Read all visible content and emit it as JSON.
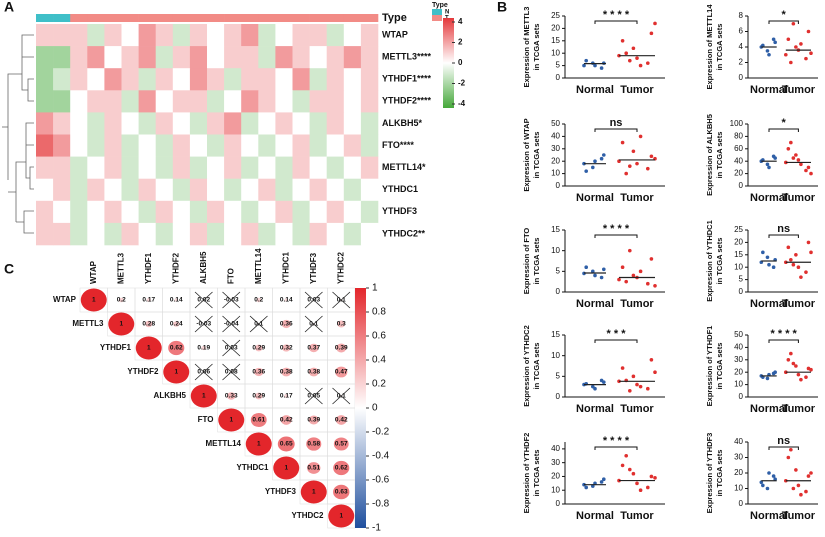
{
  "chart_data": [
    {
      "type": "heatmap",
      "panel": "A",
      "rows": [
        "WTAP",
        "METTL3****",
        "YTHDF1****",
        "YTHDF2****",
        "ALKBH5*",
        "FTO****",
        "METTL14*",
        "YTHDC1",
        "YTHDF3",
        "YTHDC2**"
      ],
      "column_types": [
        "N",
        "N",
        "T",
        "T",
        "T",
        "T",
        "T",
        "T",
        "T",
        "T",
        "T",
        "T",
        "T",
        "T",
        "T",
        "T",
        "T",
        "T",
        "T",
        "T"
      ],
      "values": [
        [
          1,
          1,
          1,
          -1,
          1,
          0,
          2,
          1,
          -1,
          1,
          0,
          1,
          2,
          -1,
          0,
          1,
          1,
          -1,
          0,
          1
        ],
        [
          -2,
          -2,
          1,
          2,
          0,
          1,
          2,
          -1,
          1,
          2,
          0,
          1,
          1,
          -1,
          2,
          1,
          0,
          1,
          2,
          1
        ],
        [
          -2,
          -1,
          1,
          0,
          2,
          1,
          -1,
          1,
          0,
          2,
          1,
          -1,
          1,
          1,
          0,
          2,
          -1,
          1,
          0,
          1
        ],
        [
          -2,
          -2,
          0,
          1,
          1,
          -1,
          2,
          0,
          1,
          1,
          -1,
          0,
          2,
          1,
          0,
          -1,
          1,
          1,
          0,
          1
        ],
        [
          2,
          1,
          0,
          -1,
          1,
          0,
          -1,
          1,
          0,
          -1,
          1,
          2,
          -1,
          0,
          1,
          0,
          -1,
          1,
          0,
          -1
        ],
        [
          3,
          2,
          0,
          -1,
          1,
          -1,
          0,
          -1,
          1,
          0,
          -1,
          1,
          0,
          -1,
          0,
          1,
          -1,
          0,
          1,
          -1
        ],
        [
          1,
          1,
          -1,
          0,
          1,
          -1,
          0,
          -1,
          1,
          -1,
          0,
          1,
          -1,
          0,
          -1,
          1,
          0,
          -1,
          0,
          1
        ],
        [
          0,
          1,
          -1,
          1,
          0,
          -1,
          1,
          0,
          -1,
          1,
          0,
          -1,
          0,
          1,
          -1,
          0,
          1,
          0,
          -1,
          0
        ],
        [
          1,
          0,
          -1,
          0,
          1,
          0,
          -1,
          1,
          0,
          -1,
          1,
          0,
          -1,
          0,
          1,
          -1,
          0,
          1,
          0,
          -1
        ],
        [
          1,
          1,
          -1,
          0,
          -1,
          1,
          0,
          -1,
          0,
          1,
          -1,
          0,
          1,
          -1,
          0,
          -1,
          1,
          0,
          -1,
          0
        ]
      ],
      "annotation_title": "Type",
      "legend": {
        "title": "Type",
        "entries": [
          {
            "name": "N",
            "color": "#3fbfc8"
          },
          {
            "name": "T",
            "color": "#f28b86"
          }
        ]
      },
      "clim": [
        -4,
        4
      ],
      "colorbar_ticks": [
        4,
        2,
        0,
        -2,
        -4
      ],
      "colors": [
        "#45a83a",
        "#ffffff",
        "#e4373a"
      ]
    },
    {
      "type": "strip",
      "panel": "B",
      "ylabel": [
        "Expression of METTL3",
        "in TCGA sets"
      ],
      "categories": [
        "Normal",
        "Tumor"
      ],
      "colors": [
        "#2f5fa7",
        "#e0302f"
      ],
      "significance": "* * * *",
      "ylim": [
        0,
        25
      ],
      "yticks": [
        0,
        5,
        10,
        15,
        20,
        25
      ],
      "points": [
        [
          5,
          6,
          4,
          7,
          5,
          6
        ],
        [
          9,
          12,
          6,
          15,
          8,
          18,
          10,
          5,
          22,
          7
        ]
      ],
      "means": [
        5.8,
        9
      ]
    },
    {
      "type": "strip",
      "ylabel": [
        "Expression of METTL14",
        "in TCGA sets"
      ],
      "categories": [
        "Normal",
        "Tumor"
      ],
      "colors": [
        "#2f5fa7",
        "#e0302f"
      ],
      "significance": "*",
      "ylim": [
        0,
        8
      ],
      "yticks": [
        0,
        2,
        4,
        6,
        8
      ],
      "points": [
        [
          4,
          3.5,
          5,
          4.2,
          3,
          4.6
        ],
        [
          3,
          4,
          2.5,
          5,
          3.6,
          6,
          2,
          4.4,
          3.2,
          7
        ]
      ],
      "means": [
        4,
        3.6
      ]
    },
    {
      "type": "strip",
      "ylabel": [
        "Expression of WTAP",
        "in TCGA sets"
      ],
      "categories": [
        "Normal",
        "Tumor"
      ],
      "colors": [
        "#2f5fa7",
        "#e0302f"
      ],
      "significance": "ns",
      "ylim": [
        0,
        50
      ],
      "yticks": [
        0,
        10,
        20,
        30,
        40,
        50
      ],
      "points": [
        [
          18,
          15,
          22,
          12,
          20,
          25
        ],
        [
          20,
          28,
          14,
          35,
          18,
          24,
          10,
          40,
          22,
          16
        ]
      ],
      "means": [
        18,
        21
      ]
    },
    {
      "type": "strip",
      "ylabel": [
        "Expression of ALKBH5",
        "in TCGA sets"
      ],
      "categories": [
        "Normal",
        "Tumor"
      ],
      "colors": [
        "#2f5fa7",
        "#e0302f"
      ],
      "significance": "*",
      "ylim": [
        0,
        100
      ],
      "yticks": [
        0,
        20,
        40,
        60,
        80,
        100
      ],
      "points": [
        [
          40,
          35,
          48,
          42,
          30,
          45
        ],
        [
          38,
          50,
          25,
          60,
          42,
          30,
          70,
          35,
          20,
          45
        ]
      ],
      "means": [
        40,
        38
      ]
    },
    {
      "type": "strip",
      "ylabel": [
        "Expression of FTO",
        "in TCGA sets"
      ],
      "categories": [
        "Normal",
        "Tumor"
      ],
      "colors": [
        "#2f5fa7",
        "#e0302f"
      ],
      "significance": "* * * *",
      "ylim": [
        0,
        15
      ],
      "yticks": [
        0,
        5,
        10,
        15
      ],
      "points": [
        [
          4.5,
          5,
          3.5,
          6,
          4,
          5.5
        ],
        [
          3,
          4,
          2,
          6,
          3.5,
          8,
          2.5,
          5,
          1.5,
          10
        ]
      ],
      "means": [
        4.6,
        3.5
      ]
    },
    {
      "type": "strip",
      "ylabel": [
        "Expression of YTHDC1",
        "in TCGA sets"
      ],
      "categories": [
        "Normal",
        "Tumor"
      ],
      "colors": [
        "#2f5fa7",
        "#e0302f"
      ],
      "significance": "ns",
      "ylim": [
        0,
        25
      ],
      "yticks": [
        0,
        5,
        10,
        15,
        20,
        25
      ],
      "points": [
        [
          12,
          14,
          10,
          16,
          11,
          13
        ],
        [
          12,
          15,
          8,
          18,
          10,
          20,
          13,
          6,
          16,
          11
        ]
      ],
      "means": [
        12.5,
        12
      ]
    },
    {
      "type": "strip",
      "ylabel": [
        "Expression of YTHDC2",
        "in TCGA sets"
      ],
      "categories": [
        "Normal",
        "Tumor"
      ],
      "colors": [
        "#2f5fa7",
        "#e0302f"
      ],
      "significance": "* * *",
      "ylim": [
        0,
        15
      ],
      "yticks": [
        0,
        5,
        10,
        15
      ],
      "points": [
        [
          3,
          2.5,
          4,
          3.2,
          2,
          3.6
        ],
        [
          3.8,
          5,
          2,
          7,
          3,
          9,
          4,
          2.5,
          6,
          1.5
        ]
      ],
      "means": [
        3,
        3.8
      ]
    },
    {
      "type": "strip",
      "ylabel": [
        "Expression of YTHDF1",
        "in TCGA sets"
      ],
      "categories": [
        "Normal",
        "Tumor"
      ],
      "colors": [
        "#2f5fa7",
        "#e0302f"
      ],
      "significance": "* * * *",
      "ylim": [
        0,
        50
      ],
      "yticks": [
        0,
        10,
        20,
        30,
        40,
        50
      ],
      "points": [
        [
          17,
          15,
          19,
          16,
          18,
          20
        ],
        [
          20,
          25,
          16,
          30,
          18,
          23,
          35,
          14,
          22,
          27
        ]
      ],
      "means": [
        17,
        20
      ]
    },
    {
      "type": "strip",
      "ylabel": [
        "Expression of YTHDF2",
        "in TCGA sets"
      ],
      "categories": [
        "Normal",
        "Tumor"
      ],
      "colors": [
        "#2f5fa7",
        "#e0302f"
      ],
      "significance": "* * * *",
      "ylim": [
        0,
        45
      ],
      "yticks": [
        0,
        10,
        20,
        30,
        40
      ],
      "points": [
        [
          14,
          13,
          16,
          12,
          15,
          18
        ],
        [
          17,
          22,
          12,
          28,
          15,
          20,
          35,
          10,
          19,
          25
        ]
      ],
      "means": [
        14,
        17
      ]
    },
    {
      "type": "strip",
      "ylabel": [
        "Expression of YTHDF3",
        "in TCGA sets"
      ],
      "categories": [
        "Normal",
        "Tumor"
      ],
      "colors": [
        "#2f5fa7",
        "#e0302f"
      ],
      "significance": "ns",
      "ylim": [
        0,
        40
      ],
      "yticks": [
        0,
        10,
        20,
        30,
        40
      ],
      "points": [
        [
          14,
          10,
          18,
          12,
          20,
          16
        ],
        [
          15,
          22,
          8,
          30,
          12,
          18,
          35,
          6,
          20,
          10
        ]
      ],
      "means": [
        15,
        15
      ]
    },
    {
      "type": "corrplot",
      "panel": "C",
      "labels": [
        "WTAP",
        "METTL3",
        "YTHDF1",
        "YTHDF2",
        "ALKBH5",
        "FTO",
        "METTL14",
        "YTHDC1",
        "YTHDF3",
        "YTHDC2"
      ],
      "values": [
        [
          1,
          0.2,
          0.17,
          0.14,
          0.02,
          -0.03,
          0.2,
          0.14,
          0.03,
          0.1
        ],
        [
          1,
          0.28,
          0.24,
          -0.03,
          -0.04,
          0.1,
          0.36,
          0.1,
          0.3
        ],
        [
          1,
          0.62,
          0.19,
          0.03,
          0.29,
          0.32,
          0.37,
          0.39
        ],
        [
          1,
          0.06,
          0.08,
          0.36,
          0.38,
          0.38,
          0.47
        ],
        [
          1,
          0.33,
          0.29,
          0.17,
          0.05,
          0.1
        ],
        [
          1,
          0.61,
          0.42,
          0.39,
          0.42
        ],
        [
          1,
          0.65,
          0.58,
          0.57
        ],
        [
          1,
          0.51,
          0.62
        ],
        [
          1,
          0.63
        ],
        [
          1
        ]
      ],
      "insignificant": [
        [
          false,
          false,
          false,
          false,
          true,
          true,
          false,
          false,
          true,
          true
        ],
        [
          false,
          false,
          false,
          true,
          true,
          true,
          false,
          true,
          false
        ],
        [
          false,
          false,
          false,
          true,
          false,
          false,
          false,
          false
        ],
        [
          false,
          true,
          true,
          false,
          false,
          false,
          false
        ],
        [
          false,
          false,
          false,
          false,
          true,
          true
        ],
        [
          false,
          false,
          false,
          false,
          false
        ],
        [
          false,
          false,
          false,
          false
        ],
        [
          false,
          false,
          false
        ],
        [
          false,
          false
        ],
        [
          false
        ]
      ],
      "clim": [
        -1,
        1
      ],
      "colorbar_ticks": [
        1,
        0.8,
        0.6,
        0.4,
        0.2,
        0,
        -0.2,
        -0.4,
        -0.6,
        -0.8,
        -1
      ],
      "colors": [
        "#1f4f9e",
        "#ffffff",
        "#e3262b"
      ]
    }
  ]
}
